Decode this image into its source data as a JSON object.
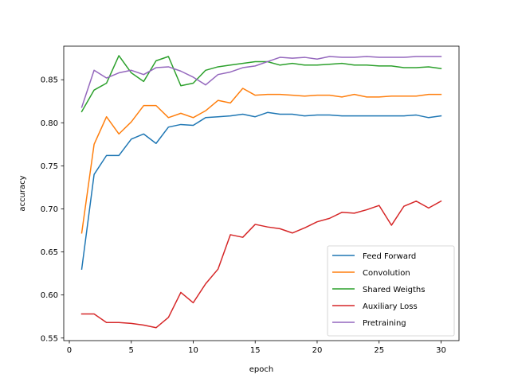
{
  "chart_data": {
    "type": "line",
    "title": "",
    "xlabel": "epoch",
    "ylabel": "accuracy",
    "xlim": [
      -0.45,
      31.45
    ],
    "ylim": [
      0.547,
      0.889
    ],
    "x_ticks": [
      0,
      5,
      10,
      15,
      20,
      25,
      30
    ],
    "y_ticks": [
      0.55,
      0.6,
      0.65,
      0.7,
      0.75,
      0.8,
      0.85
    ],
    "y_tick_labels": [
      "0.55",
      "0.60",
      "0.65",
      "0.70",
      "0.75",
      "0.80",
      "0.85"
    ],
    "grid": false,
    "legend_position": "lower-right",
    "x": [
      1,
      2,
      3,
      4,
      5,
      6,
      7,
      8,
      9,
      10,
      11,
      12,
      13,
      14,
      15,
      16,
      17,
      18,
      19,
      20,
      21,
      22,
      23,
      24,
      25,
      26,
      27,
      28,
      29,
      30
    ],
    "series": [
      {
        "name": "Feed Forward",
        "color": "#1f77b4",
        "values": [
          0.63,
          0.74,
          0.762,
          0.762,
          0.781,
          0.787,
          0.776,
          0.795,
          0.798,
          0.797,
          0.806,
          0.807,
          0.808,
          0.81,
          0.807,
          0.812,
          0.81,
          0.81,
          0.808,
          0.809,
          0.809,
          0.808,
          0.808,
          0.808,
          0.808,
          0.808,
          0.808,
          0.809,
          0.806,
          0.808
        ]
      },
      {
        "name": "Convolution",
        "color": "#ff7f0e",
        "values": [
          0.672,
          0.775,
          0.807,
          0.787,
          0.801,
          0.82,
          0.82,
          0.806,
          0.811,
          0.806,
          0.814,
          0.826,
          0.823,
          0.84,
          0.832,
          0.833,
          0.833,
          0.832,
          0.831,
          0.832,
          0.832,
          0.83,
          0.833,
          0.83,
          0.83,
          0.831,
          0.831,
          0.831,
          0.833,
          0.833
        ]
      },
      {
        "name": "Shared Weigths",
        "color": "#2ca02c",
        "values": [
          0.813,
          0.838,
          0.846,
          0.878,
          0.858,
          0.848,
          0.872,
          0.877,
          0.843,
          0.846,
          0.861,
          0.865,
          0.867,
          0.869,
          0.871,
          0.871,
          0.867,
          0.869,
          0.867,
          0.867,
          0.868,
          0.869,
          0.867,
          0.867,
          0.866,
          0.866,
          0.864,
          0.864,
          0.865,
          0.863
        ]
      },
      {
        "name": "Auxiliary Loss",
        "color": "#d62728",
        "values": [
          0.578,
          0.578,
          0.568,
          0.568,
          0.567,
          0.565,
          0.562,
          0.574,
          0.603,
          0.591,
          0.613,
          0.63,
          0.67,
          0.667,
          0.682,
          0.679,
          0.677,
          0.672,
          0.678,
          0.685,
          0.689,
          0.696,
          0.695,
          0.699,
          0.704,
          0.681,
          0.703,
          0.709,
          0.701,
          0.709
        ]
      },
      {
        "name": "Pretraining",
        "color": "#9467bd",
        "values": [
          0.818,
          0.861,
          0.852,
          0.858,
          0.861,
          0.856,
          0.864,
          0.865,
          0.86,
          0.853,
          0.844,
          0.856,
          0.859,
          0.864,
          0.866,
          0.871,
          0.876,
          0.875,
          0.876,
          0.874,
          0.877,
          0.876,
          0.876,
          0.877,
          0.876,
          0.876,
          0.876,
          0.877,
          0.877,
          0.877
        ]
      }
    ]
  }
}
